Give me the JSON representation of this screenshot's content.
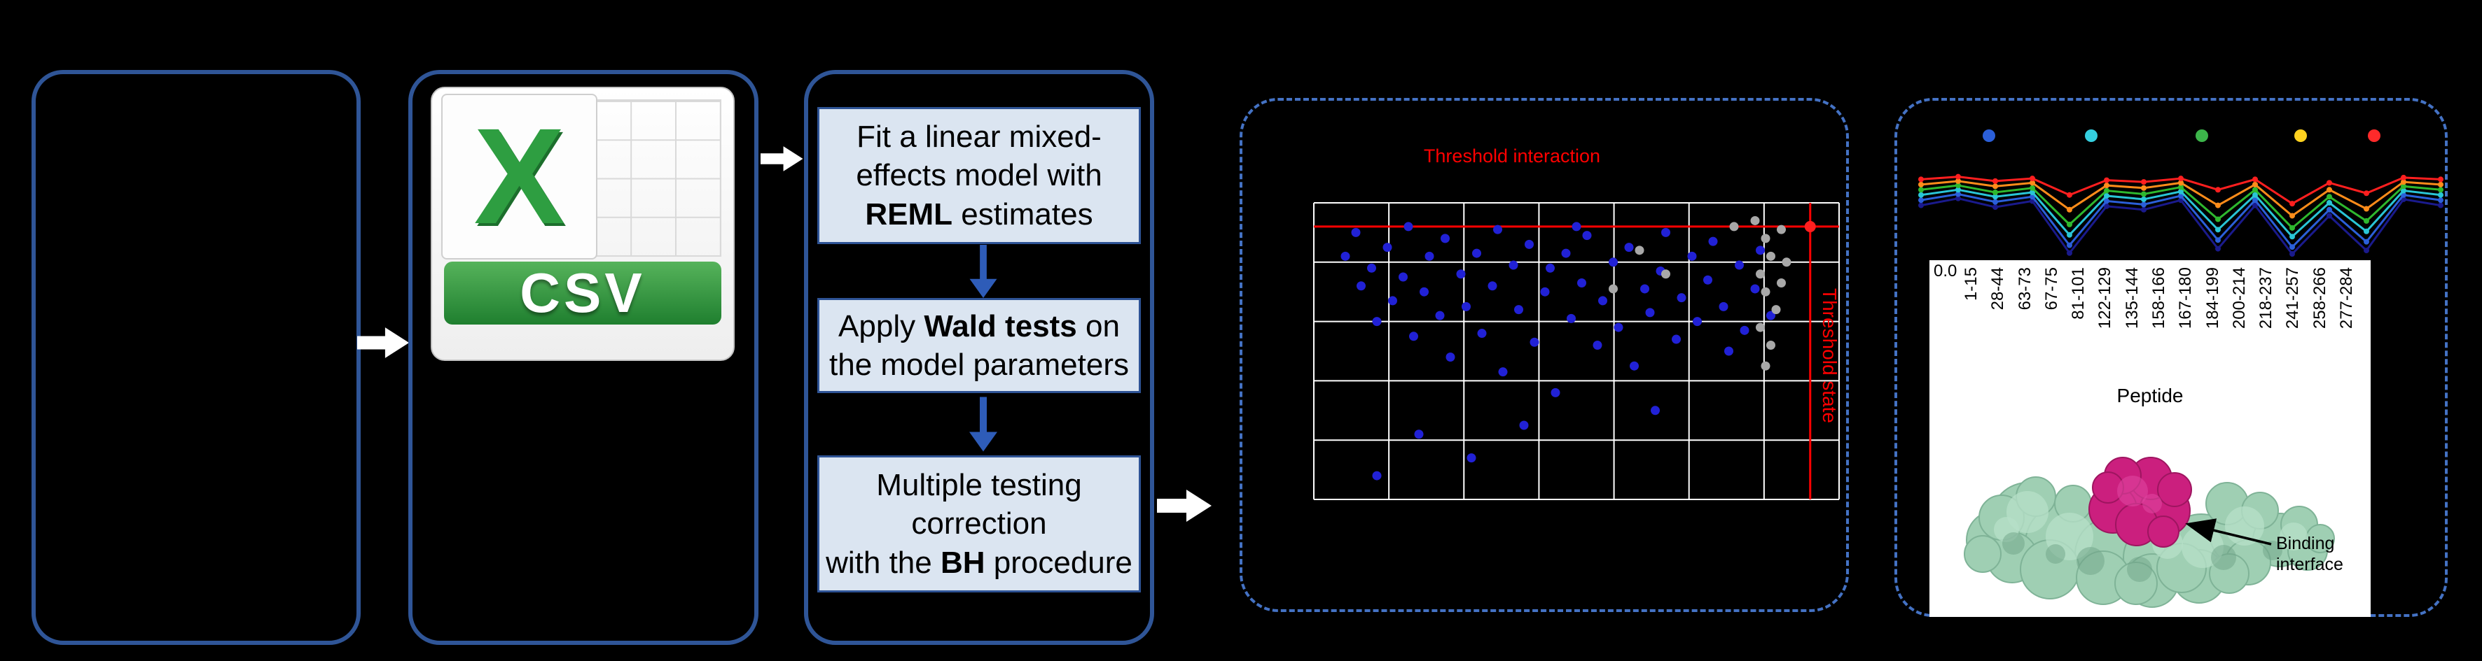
{
  "csv_icon": {
    "logo_letter": "X",
    "banner_label": "CSV"
  },
  "workflow": {
    "steps": [
      {
        "prefix": "Fit a linear mixed-effects model with ",
        "bold": "REML",
        "suffix": " estimates"
      },
      {
        "prefix": "Apply ",
        "bold": "Wald tests",
        "suffix": " on the model parameters"
      },
      {
        "prefix": "Multiple testing correction\nwith the ",
        "bold": "BH",
        "suffix": " procedure"
      }
    ]
  },
  "structure": {
    "annotation": "Binding interface"
  },
  "colors": {
    "panel_border": "#2f5597",
    "dashed_border": "#4472c4",
    "step_fill": "#dbe5f1",
    "step_border": "#2e5395",
    "threshold_red": "#ff0000",
    "significant_blue": "#2121d6",
    "nonsignificant_grey": "#a8a8a8",
    "csv_green": "#2e9e41",
    "protein_green": "#9fcfb3",
    "binding_magenta": "#cb1f7e"
  },
  "chart_data": [
    {
      "type": "scatter",
      "title": "Threshold interaction",
      "y_side_label": "Threshold state",
      "grid": true,
      "threshold_color": "#ff0000",
      "threshold_lines": {
        "horizontal_y_pct": 8,
        "vertical_x_pct": 94.5
      },
      "series": [
        {
          "name": "significant-peptides",
          "color": "#2121d6",
          "radius": 6.5,
          "points": [
            [
              6,
              18
            ],
            [
              8,
              10
            ],
            [
              9,
              28
            ],
            [
              11,
              22
            ],
            [
              12,
              40
            ],
            [
              14,
              15
            ],
            [
              15,
              33
            ],
            [
              17,
              25
            ],
            [
              18,
              8
            ],
            [
              19,
              45
            ],
            [
              21,
              30
            ],
            [
              22,
              18
            ],
            [
              24,
              38
            ],
            [
              25,
              12
            ],
            [
              26,
              52
            ],
            [
              28,
              24
            ],
            [
              29,
              35
            ],
            [
              31,
              17
            ],
            [
              32,
              44
            ],
            [
              34,
              28
            ],
            [
              35,
              9
            ],
            [
              36,
              57
            ],
            [
              38,
              21
            ],
            [
              39,
              36
            ],
            [
              41,
              14
            ],
            [
              42,
              47
            ],
            [
              44,
              30
            ],
            [
              45,
              22
            ],
            [
              46,
              64
            ],
            [
              48,
              17
            ],
            [
              49,
              39
            ],
            [
              51,
              27
            ],
            [
              52,
              11
            ],
            [
              54,
              48
            ],
            [
              55,
              33
            ],
            [
              57,
              20
            ],
            [
              58,
              42
            ],
            [
              60,
              15
            ],
            [
              61,
              55
            ],
            [
              63,
              29
            ],
            [
              64,
              37
            ],
            [
              66,
              23
            ],
            [
              67,
              10
            ],
            [
              69,
              46
            ],
            [
              70,
              32
            ],
            [
              72,
              18
            ],
            [
              73,
              40
            ],
            [
              75,
              26
            ],
            [
              76,
              13
            ],
            [
              78,
              35
            ],
            [
              79,
              50
            ],
            [
              81,
              21
            ],
            [
              82,
              43
            ],
            [
              84,
              29
            ],
            [
              85,
              16
            ],
            [
              87,
              38
            ],
            [
              20,
              78
            ],
            [
              30,
              86
            ],
            [
              12,
              92
            ],
            [
              40,
              75
            ],
            [
              50,
              8
            ],
            [
              65,
              70
            ]
          ]
        },
        {
          "name": "non-significant-peptides",
          "color": "#a8a8a8",
          "radius": 6.5,
          "points": [
            [
              84,
              6
            ],
            [
              86,
              12
            ],
            [
              87,
              18
            ],
            [
              85,
              24
            ],
            [
              86,
              30
            ],
            [
              88,
              36
            ],
            [
              85,
              42
            ],
            [
              87,
              48
            ],
            [
              86,
              55
            ],
            [
              89,
              9
            ],
            [
              89,
              27
            ],
            [
              62,
              16
            ],
            [
              67,
              24
            ],
            [
              57,
              29
            ],
            [
              80,
              8
            ],
            [
              90,
              20
            ]
          ]
        },
        {
          "name": "threshold-crossing-point",
          "color": "#ff1f1f",
          "radius": 8,
          "points": [
            [
              94.5,
              8
            ]
          ]
        }
      ]
    },
    {
      "type": "line",
      "x_title": "Peptide",
      "y_tick": "0.0",
      "x_labels": [
        "1-15",
        "28-44",
        "63-73",
        "67-75",
        "81-101",
        "122-129",
        "135-144",
        "158-166",
        "167-180",
        "184-199",
        "200-214",
        "218-237",
        "241-257",
        "258-266",
        "277-284"
      ],
      "legend_dot_colors": [
        "#2b5fd9",
        "#35cfe0",
        "#3cb54a",
        "#ffd21f",
        "#ff2a2a"
      ],
      "series": [
        {
          "name": "navy",
          "color": "#1a1a8c",
          "values": [
            0.6,
            0.68,
            0.58,
            0.65,
            0.05,
            0.59,
            0.55,
            0.66,
            0.1,
            0.6,
            0.04,
            0.48,
            0.08,
            0.67,
            0.6
          ]
        },
        {
          "name": "blue",
          "color": "#2b5fd9",
          "values": [
            0.66,
            0.73,
            0.64,
            0.7,
            0.14,
            0.65,
            0.61,
            0.71,
            0.2,
            0.66,
            0.12,
            0.55,
            0.18,
            0.72,
            0.66
          ]
        },
        {
          "name": "cyan",
          "color": "#29c5d6",
          "values": [
            0.72,
            0.78,
            0.7,
            0.75,
            0.26,
            0.71,
            0.67,
            0.76,
            0.32,
            0.72,
            0.24,
            0.63,
            0.3,
            0.77,
            0.72
          ]
        },
        {
          "name": "green",
          "color": "#2eb82e",
          "values": [
            0.78,
            0.83,
            0.75,
            0.8,
            0.38,
            0.77,
            0.73,
            0.81,
            0.44,
            0.78,
            0.34,
            0.7,
            0.42,
            0.82,
            0.78
          ]
        },
        {
          "name": "orange",
          "color": "#ff8c1a",
          "values": [
            0.84,
            0.88,
            0.82,
            0.86,
            0.55,
            0.83,
            0.8,
            0.86,
            0.6,
            0.84,
            0.48,
            0.78,
            0.56,
            0.87,
            0.84
          ]
        },
        {
          "name": "red",
          "color": "#ff1f1f",
          "values": [
            0.9,
            0.93,
            0.88,
            0.91,
            0.72,
            0.89,
            0.87,
            0.91,
            0.78,
            0.9,
            0.62,
            0.86,
            0.74,
            0.92,
            0.9
          ]
        }
      ]
    }
  ]
}
